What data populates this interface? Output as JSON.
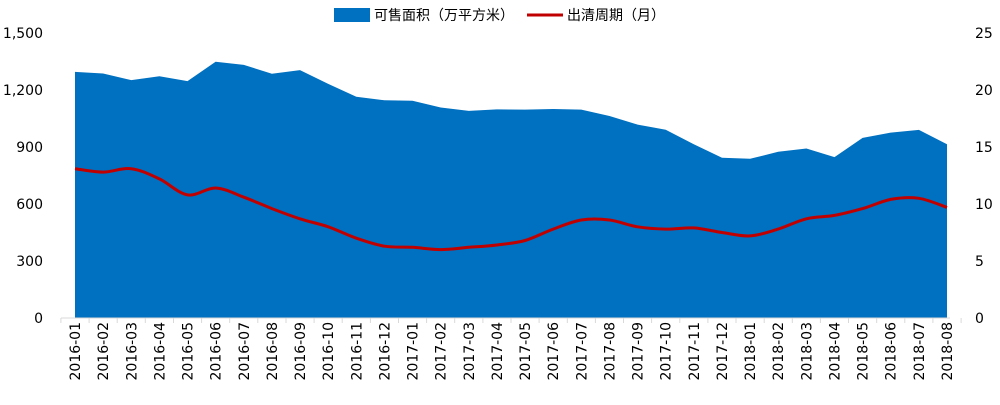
{
  "chart_data": {
    "type": "area+line",
    "categories": [
      "2016-01",
      "2016-02",
      "2016-03",
      "2016-04",
      "2016-05",
      "2016-06",
      "2016-07",
      "2016-08",
      "2016-09",
      "2016-10",
      "2016-11",
      "2016-12",
      "2017-01",
      "2017-02",
      "2017-03",
      "2017-04",
      "2017-05",
      "2017-06",
      "2017-07",
      "2017-08",
      "2017-09",
      "2017-10",
      "2017-11",
      "2017-12",
      "2018-01",
      "2018-02",
      "2018-03",
      "2018-04",
      "2018-05",
      "2018-06",
      "2018-07",
      "2018-08"
    ],
    "series": [
      {
        "name": "可售面积（万平方米）",
        "type": "area",
        "axis": "left",
        "color": "#0070c0",
        "values": [
          1295,
          1287,
          1252,
          1272,
          1247,
          1349,
          1332,
          1286,
          1305,
          1232,
          1165,
          1146,
          1143,
          1108,
          1090,
          1098,
          1097,
          1100,
          1097,
          1063,
          1018,
          991,
          914,
          843,
          838,
          875,
          892,
          847,
          948,
          976,
          990,
          915
        ]
      },
      {
        "name": "出清周期（月）",
        "type": "line",
        "axis": "right",
        "color": "#c00000",
        "values": [
          13.1,
          12.8,
          13.1,
          12.2,
          10.8,
          11.4,
          10.6,
          9.6,
          8.7,
          8.0,
          7.0,
          6.3,
          6.2,
          6.0,
          6.2,
          6.4,
          6.8,
          7.8,
          8.6,
          8.6,
          8.0,
          7.8,
          7.9,
          7.5,
          7.2,
          7.8,
          8.7,
          9.0,
          9.6,
          10.4,
          10.5,
          9.7
        ]
      }
    ],
    "y_left": {
      "min": 0,
      "max": 1500,
      "ticks": [
        "0",
        "300",
        "600",
        "900",
        "1,200",
        "1,500"
      ],
      "tick_values": [
        0,
        300,
        600,
        900,
        1200,
        1500
      ]
    },
    "y_right": {
      "min": 0,
      "max": 25,
      "ticks": [
        "0",
        "5",
        "10",
        "15",
        "20",
        "25"
      ],
      "tick_values": [
        0,
        5,
        10,
        15,
        20,
        25
      ]
    },
    "legend_position": "top-center",
    "grid": false
  }
}
